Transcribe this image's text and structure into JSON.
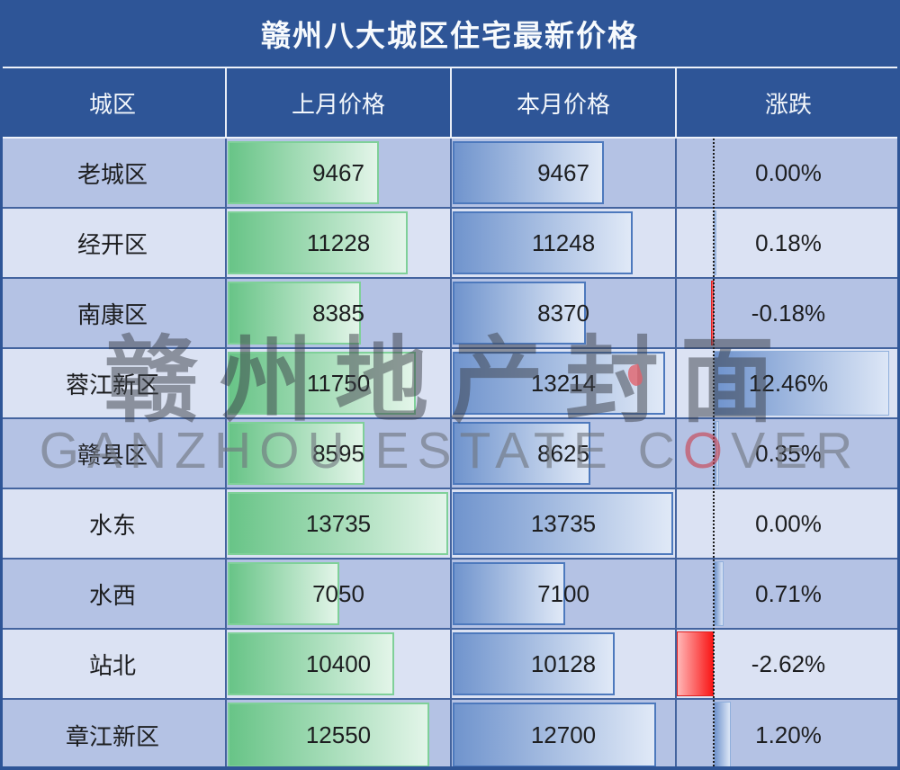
{
  "title": "赣州八大城区住宅最新价格",
  "table": {
    "columns": [
      "城区",
      "上月价格",
      "本月价格",
      "涨跌"
    ],
    "rows": [
      {
        "district": "老城区",
        "last": 9467,
        "current": 9467,
        "change_label": "0.00%",
        "change_value": 0.0
      },
      {
        "district": "经开区",
        "last": 11228,
        "current": 11248,
        "change_label": "0.18%",
        "change_value": 0.18
      },
      {
        "district": "南康区",
        "last": 8385,
        "current": 8370,
        "change_label": "-0.18%",
        "change_value": -0.18
      },
      {
        "district": "蓉江新区",
        "last": 11750,
        "current": 13214,
        "change_label": "12.46%",
        "change_value": 12.46
      },
      {
        "district": "赣县区",
        "last": 8595,
        "current": 8625,
        "change_label": "0.35%",
        "change_value": 0.35
      },
      {
        "district": "水东",
        "last": 13735,
        "current": 13735,
        "change_label": "0.00%",
        "change_value": 0.0
      },
      {
        "district": "水西",
        "last": 7050,
        "current": 7100,
        "change_label": "0.71%",
        "change_value": 0.71
      },
      {
        "district": "站北",
        "last": 10400,
        "current": 10128,
        "change_label": "-2.62%",
        "change_value": -2.62
      },
      {
        "district": "章江新区",
        "last": 12550,
        "current": 12700,
        "change_label": "1.20%",
        "change_value": 1.2
      }
    ]
  },
  "watermark": {
    "cjk": "赣州地产封面",
    "latin_pre": "GANZHOU ESTATE C",
    "latin_red": "O",
    "latin_post": "VER"
  },
  "colors": {
    "header_blue": "#2e5597",
    "row_dark": "#b4c2e4",
    "row_light": "#dbe2f3",
    "grid_line": "#44649f",
    "bar_green": "#68c487",
    "bar_blue": "#7094cd",
    "negative_red": "#f91515",
    "watermark_gray": "#3c4049",
    "watermark_red_o": "#c9404e"
  },
  "chart_data": {
    "type": "table",
    "title": "赣州八大城区住宅最新价格",
    "columns": [
      "城区",
      "上月价格",
      "本月价格",
      "涨跌"
    ],
    "categories": [
      "老城区",
      "经开区",
      "南康区",
      "蓉江新区",
      "赣县区",
      "水东",
      "水西",
      "站北",
      "章江新区"
    ],
    "series": [
      {
        "name": "上月价格",
        "values": [
          9467,
          11228,
          8385,
          11750,
          8595,
          13735,
          7050,
          10400,
          12550
        ]
      },
      {
        "name": "本月价格",
        "values": [
          9467,
          11248,
          8370,
          13214,
          8625,
          13735,
          7100,
          10128,
          12700
        ]
      },
      {
        "name": "涨跌(%)",
        "values": [
          0.0,
          0.18,
          -0.18,
          12.46,
          0.35,
          0.0,
          0.71,
          -2.62,
          1.2
        ]
      }
    ],
    "layout": "in-cell data bars; green bars = 上月价格, blue bars = 本月价格 (scaled to max 13735), 涨跌 bars diverge from dotted zero axis, red = negative, blue = positive"
  }
}
